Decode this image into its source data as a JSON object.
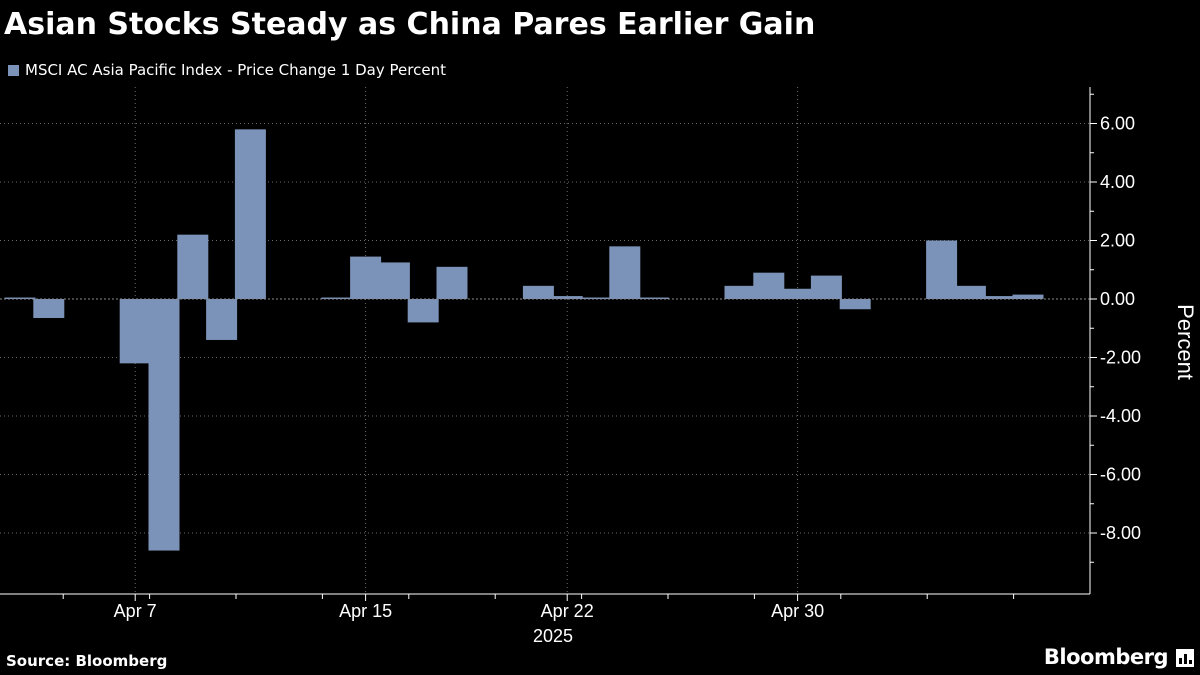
{
  "title": "Asian Stocks Steady as China Pares Earlier Gain",
  "legend": {
    "label": "MSCI AC Asia Pacific Index - Price Change 1 Day Percent",
    "color": "#7b93b8"
  },
  "source": "Source: Bloomberg",
  "brand": "Bloomberg",
  "chart_data": {
    "type": "bar",
    "title": "Asian Stocks Steady as China Pares Earlier Gain",
    "xlabel": "2025",
    "ylabel": "Percent",
    "ylim": [
      -10.0,
      7.2
    ],
    "yticks": [
      6,
      4,
      2,
      0,
      -2,
      -4,
      -6,
      -8
    ],
    "ytick_labels": [
      "6.00",
      "4.00",
      "2.00",
      "0.00",
      "-2.00",
      "-4.00",
      "-6.00",
      "-8.00"
    ],
    "x_tick_labels": [
      {
        "label": "Apr 7",
        "at": "2025-04-07"
      },
      {
        "label": "Apr 15",
        "at": "2025-04-15"
      },
      {
        "label": "Apr 22",
        "at": "2025-04-22"
      },
      {
        "label": "Apr 30",
        "at": "2025-04-30"
      }
    ],
    "grid": true,
    "legend_position": "top-left",
    "series": [
      {
        "name": "MSCI AC Asia Pacific Index - Price Change 1 Day Percent",
        "color": "#7b93b8",
        "x": [
          "2025-04-03",
          "2025-04-04",
          "2025-04-07",
          "2025-04-08",
          "2025-04-09",
          "2025-04-10",
          "2025-04-11",
          "2025-04-14",
          "2025-04-15",
          "2025-04-16",
          "2025-04-17",
          "2025-04-18",
          "2025-04-21",
          "2025-04-22",
          "2025-04-23",
          "2025-04-24",
          "2025-04-25",
          "2025-04-28",
          "2025-04-29",
          "2025-04-30",
          "2025-05-01",
          "2025-05-02",
          "2025-05-05",
          "2025-05-06",
          "2025-05-07",
          "2025-05-08"
        ],
        "values": [
          0.05,
          -0.65,
          -2.2,
          -8.6,
          2.2,
          -1.4,
          5.8,
          0.05,
          1.45,
          1.25,
          -0.8,
          1.1,
          0.45,
          0.1,
          0.05,
          1.8,
          0.05,
          0.45,
          0.9,
          0.35,
          0.8,
          -0.35,
          2.0,
          0.45,
          0.1,
          0.15
        ]
      }
    ]
  }
}
